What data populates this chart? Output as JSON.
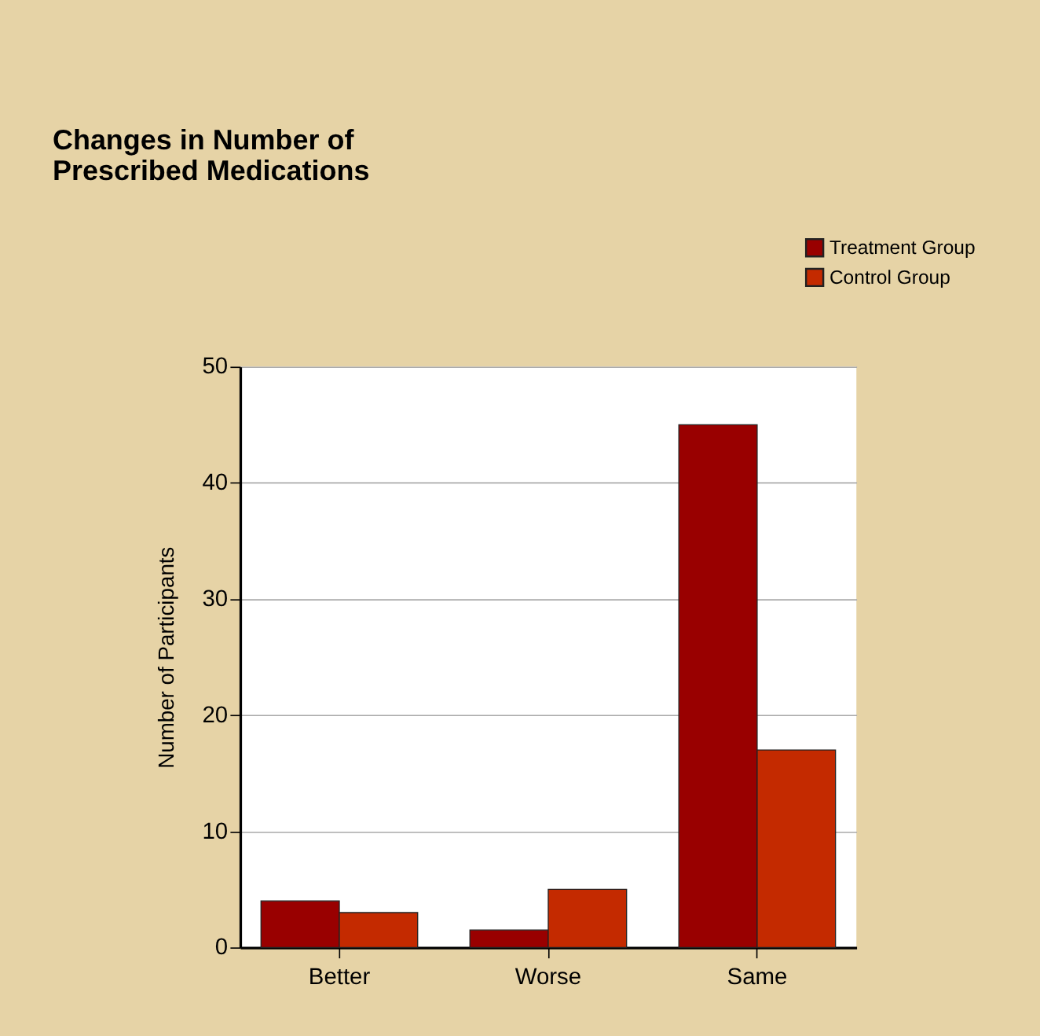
{
  "chart_data": {
    "type": "bar",
    "title": "Changes in Number of\nPrescribed Medications",
    "ylabel": "Number of Participants",
    "categories": [
      "Better",
      "Worse",
      "Same"
    ],
    "series": [
      {
        "name": "Treatment Group",
        "color": "#990000",
        "values": [
          4,
          1.5,
          45
        ]
      },
      {
        "name": "Control Group",
        "color": "#c42a00",
        "values": [
          3,
          5,
          17
        ]
      }
    ],
    "ylim": [
      0,
      50
    ],
    "yticks": [
      0,
      10,
      20,
      30,
      40,
      50
    ],
    "grid": "y",
    "legend": "top right"
  }
}
